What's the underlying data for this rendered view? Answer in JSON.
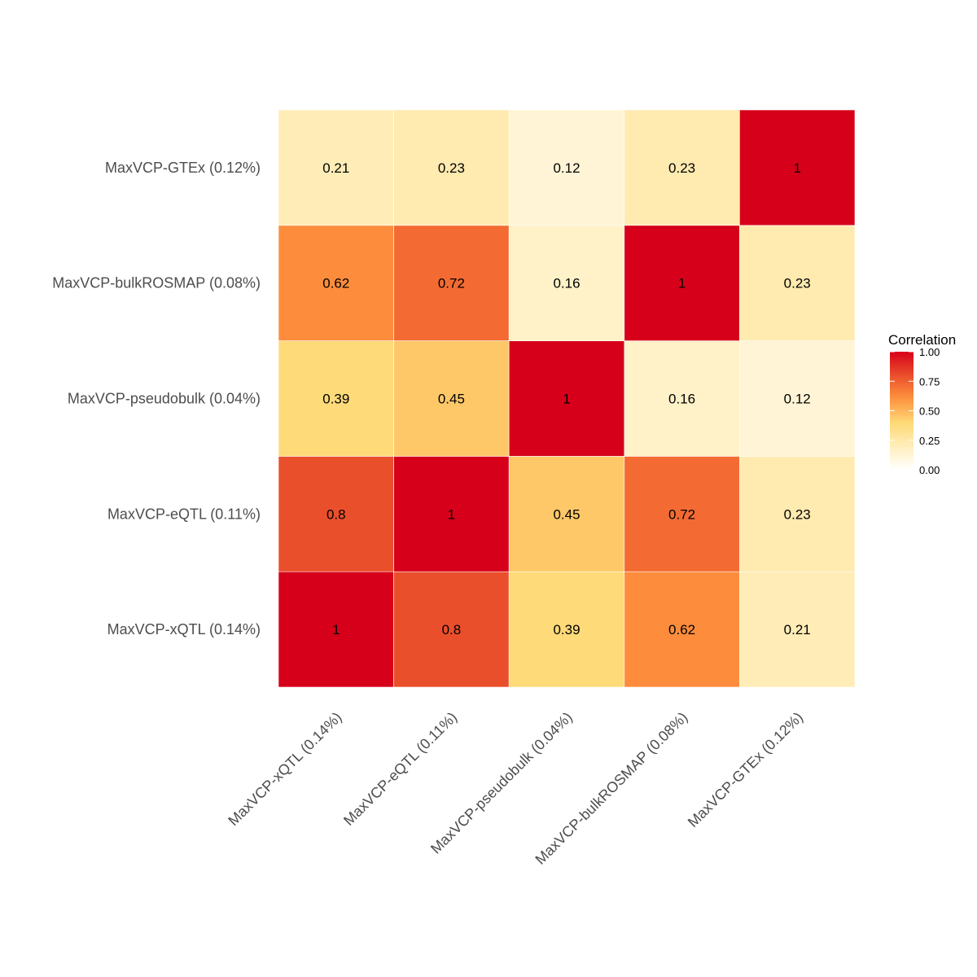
{
  "chart_data": {
    "type": "heatmap",
    "title": "",
    "xlabel": "",
    "ylabel": "",
    "x_categories": [
      "MaxVCP-xQTL (0.14%)",
      "MaxVCP-eQTL (0.11%)",
      "MaxVCP-pseudobulk (0.04%)",
      "MaxVCP-bulkROSMAP (0.08%)",
      "MaxVCP-GTEx (0.12%)"
    ],
    "y_categories": [
      "MaxVCP-xQTL (0.14%)",
      "MaxVCP-eQTL (0.11%)",
      "MaxVCP-pseudobulk (0.04%)",
      "MaxVCP-bulkROSMAP (0.08%)",
      "MaxVCP-GTEx (0.12%)"
    ],
    "values": [
      [
        1,
        0.8,
        0.39,
        0.62,
        0.21
      ],
      [
        0.8,
        1,
        0.45,
        0.72,
        0.23
      ],
      [
        0.39,
        0.45,
        1,
        0.16,
        0.12
      ],
      [
        0.62,
        0.72,
        0.16,
        1,
        0.23
      ],
      [
        0.21,
        0.23,
        0.12,
        0.23,
        1
      ]
    ],
    "value_labels": [
      [
        "1",
        "0.8",
        "0.39",
        "0.62",
        "0.21"
      ],
      [
        "0.8",
        "1",
        "0.45",
        "0.72",
        "0.23"
      ],
      [
        "0.39",
        "0.45",
        "1",
        "0.16",
        "0.12"
      ],
      [
        "0.62",
        "0.72",
        "0.16",
        "1",
        "0.23"
      ],
      [
        "0.21",
        "0.23",
        "0.12",
        "0.23",
        "1"
      ]
    ],
    "legend": {
      "title": "Correlation",
      "range": [
        0,
        1
      ],
      "ticks": [
        "0.00",
        "0.25",
        "0.50",
        "0.75",
        "1.00"
      ],
      "placement": "right"
    },
    "color_scale": [
      "#ffffff",
      "#fff5d6",
      "#fed976",
      "#fd8d3c",
      "#e8482a",
      "#d7001a"
    ],
    "grid": false
  }
}
